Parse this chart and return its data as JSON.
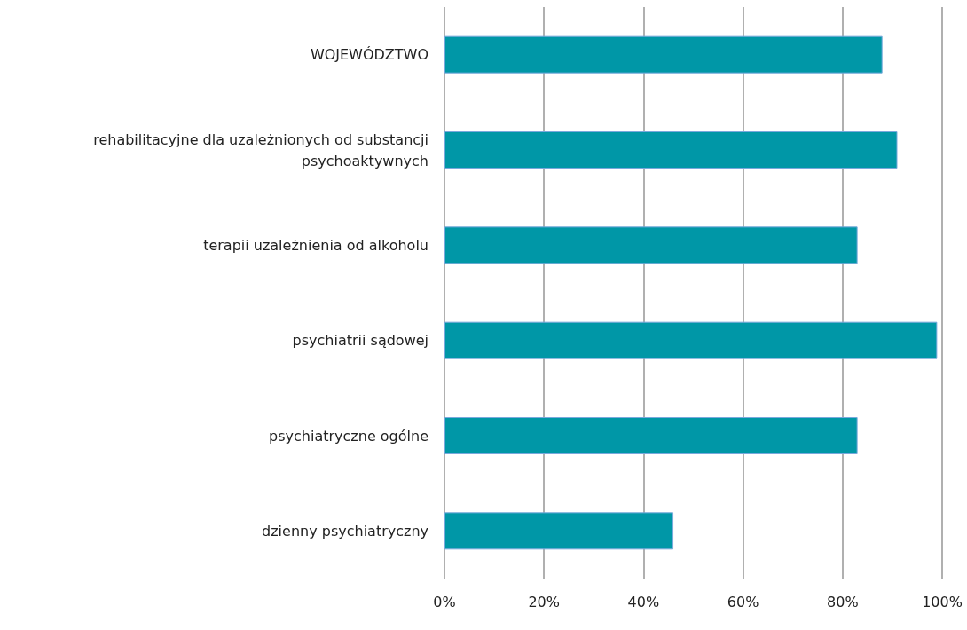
{
  "chart_data": {
    "type": "bar",
    "orientation": "horizontal",
    "categories": [
      "WOJEWÓDZTWO",
      "rehabilitacyjne dla uzależnionych od substancji psychoaktywnych",
      "terapii uzależnienia od alkoholu",
      "psychiatrii sądowej",
      "psychiatryczne ogólne",
      "dzienny psychiatryczny"
    ],
    "values": [
      88,
      91,
      83,
      99,
      83,
      46
    ],
    "color": "#0097a7",
    "xlim": [
      0,
      100
    ],
    "xticks": [
      {
        "value": 0,
        "label": "0%"
      },
      {
        "value": 20,
        "label": "20%"
      },
      {
        "value": 40,
        "label": "40%"
      },
      {
        "value": 60,
        "label": "60%"
      },
      {
        "value": 80,
        "label": "80%"
      },
      {
        "value": 100,
        "label": "100%"
      }
    ],
    "grid": "x"
  }
}
